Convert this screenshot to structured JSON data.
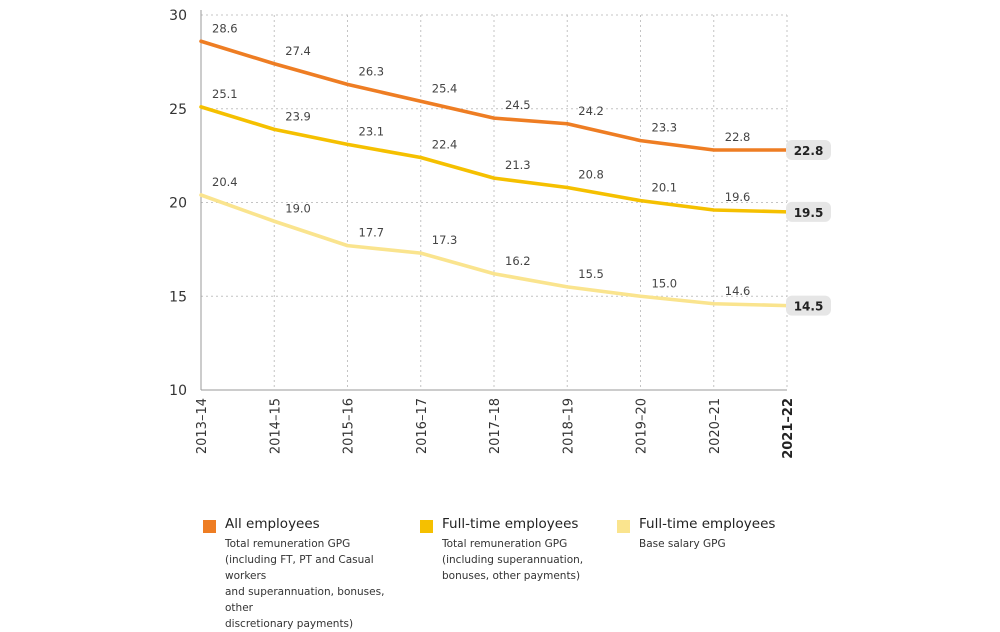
{
  "chart_data": {
    "type": "line",
    "categories": [
      "2013–14",
      "2014–15",
      "2015–16",
      "2016–17",
      "2017–18",
      "2018–19",
      "2019–20",
      "2020–21",
      "2021–22"
    ],
    "ylim": [
      10,
      30
    ],
    "yticks": [
      10,
      15,
      20,
      25,
      30
    ],
    "grid": true,
    "series": [
      {
        "name": "All employees",
        "description": "Total remuneration GPG\n(including FT, PT and Casual workers\nand superannuation, bonuses, other\ndiscretionary payments)",
        "color": "#ee7d23",
        "values": [
          28.6,
          27.4,
          26.3,
          25.4,
          24.5,
          24.2,
          23.3,
          22.8,
          22.8
        ],
        "labels": [
          "28.6",
          "27.4",
          "26.3",
          "25.4",
          "24.5",
          "24.2",
          "23.3",
          "22.8",
          "22.8"
        ]
      },
      {
        "name": "Full-time employees",
        "description": "Total remuneration GPG\n(including superannuation,\nbonuses, other payments)",
        "color": "#f5c000",
        "values": [
          25.1,
          23.9,
          23.1,
          22.4,
          21.3,
          20.8,
          20.1,
          19.6,
          19.5
        ],
        "labels": [
          "25.1",
          "23.9",
          "23.1",
          "22.4",
          "21.3",
          "20.8",
          "20.1",
          "19.6",
          "19.5"
        ]
      },
      {
        "name": "Full-time employees",
        "description": "Base salary GPG",
        "color": "#fae48e",
        "values": [
          20.4,
          19.0,
          17.7,
          17.3,
          16.2,
          15.5,
          15.0,
          14.6,
          14.5
        ],
        "labels": [
          "20.4",
          "19.0",
          "17.7",
          "17.3",
          "16.2",
          "15.5",
          "15.0",
          "14.6",
          "14.5"
        ]
      }
    ]
  }
}
